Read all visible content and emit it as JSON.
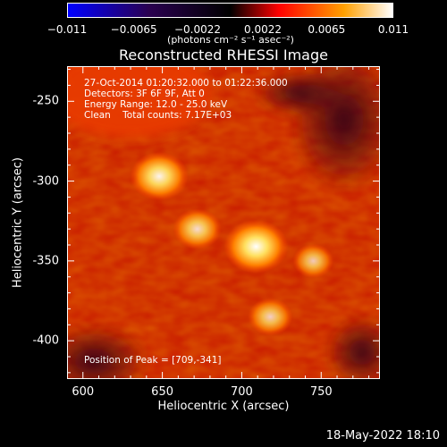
{
  "colorbar": {
    "ticks": [
      "−0.011",
      "−0.0065",
      "−0.0022",
      "0.0022",
      "0.0065",
      "0.011"
    ],
    "tick_values": [
      -0.011,
      -0.0065,
      -0.0022,
      0.0022,
      0.0065,
      0.011
    ],
    "unit": "(photons cm⁻² s⁻¹ asec⁻²)",
    "colors": [
      "#0000ff",
      "#2a0050",
      "#000000",
      "#ff0000",
      "#ffa000",
      "#ffffff"
    ]
  },
  "chart_data": {
    "type": "heatmap",
    "title": "Reconstructed RHESSI Image",
    "xlabel": "Heliocentric X (arcsec)",
    "ylabel": "Heliocentric Y (arcsec)",
    "xlim": [
      590,
      787
    ],
    "ylim": [
      -424,
      -228
    ],
    "x_ticks": [
      600,
      650,
      700,
      750
    ],
    "y_ticks": [
      -250,
      -300,
      -350,
      -400
    ],
    "sources": [
      {
        "x": 709,
        "y": -341,
        "intensity": 1.0
      },
      {
        "x": 648,
        "y": -297,
        "intensity": 0.85
      },
      {
        "x": 672,
        "y": -330,
        "intensity": 0.6
      },
      {
        "x": 718,
        "y": -385,
        "intensity": 0.5
      },
      {
        "x": 745,
        "y": -350,
        "intensity": 0.4
      }
    ],
    "annotations": [
      "27-Oct-2014 01:20:32.000 to 01:22:36.000",
      "Detectors: 3F 6F 9F, Att 0",
      "Energy Range: 12.0 - 25.0 keV",
      "Clean    Total counts: 7.17E+03"
    ],
    "peak_label": "Position of Peak = [709,-341]"
  },
  "timestamp": "18-May-2022 18:10"
}
